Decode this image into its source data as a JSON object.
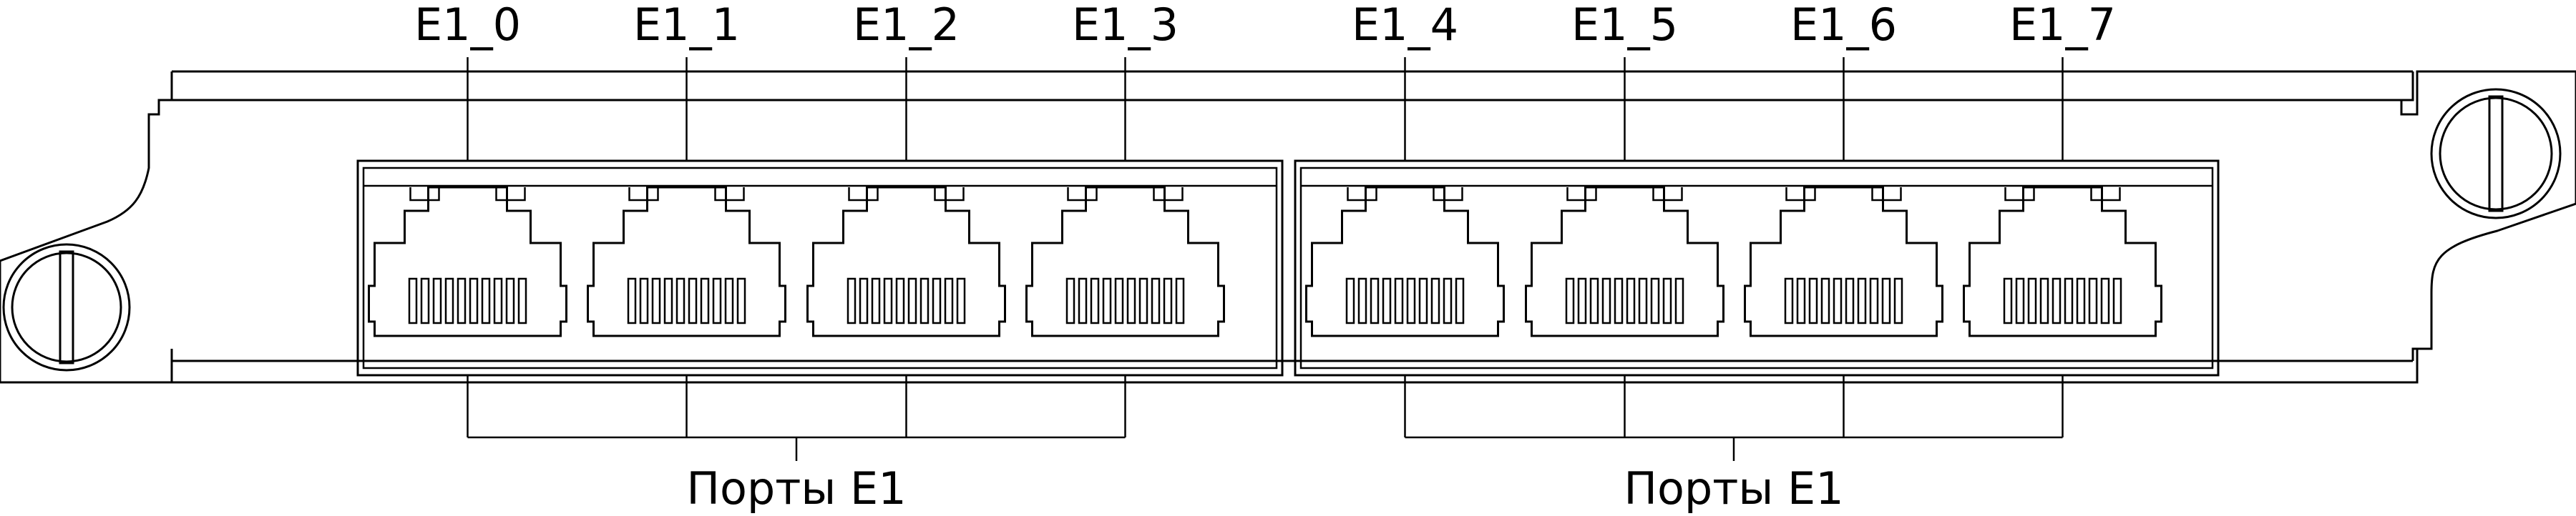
{
  "ports": [
    {
      "label": "E1_0"
    },
    {
      "label": "E1_1"
    },
    {
      "label": "E1_2"
    },
    {
      "label": "E1_3"
    },
    {
      "label": "E1_4"
    },
    {
      "label": "E1_5"
    },
    {
      "label": "E1_6"
    },
    {
      "label": "E1_7"
    }
  ],
  "groups": [
    {
      "label": "Порты E1"
    },
    {
      "label": "Порты E1"
    }
  ],
  "screws": [
    {
      "name": "left-screw"
    },
    {
      "name": "right-screw"
    }
  ],
  "contact_pins_per_port": 10
}
